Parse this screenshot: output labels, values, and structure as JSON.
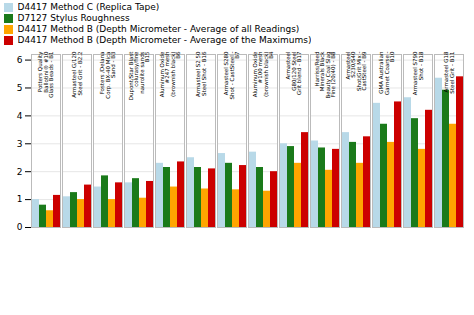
{
  "chart_data": {
    "type": "bar",
    "categories": [
      "Potters Quality\nBallotini® #10\nGlass Beads - B1",
      "Armasteel G/120\nSteel Grit - B2.2",
      "Fosters /Delana\nCorp. BX-40 Mica\nSand - B3",
      "Dupont/Star Blast\ncolurasy/fine\nnaurolite sands\nB15",
      "Aluminum Oxide\n#247 mesh\n(brownish black)\nB6",
      "Armasteel S2 50\nSteel Shot - B16",
      "Armasteel S280\nShot - CastSteel -\nB7",
      "Aluminum Oxide\n#100 mesh\n(brownish black)\nB4",
      "Armasteel\nG80/120 Steel\nGrit blend - B17",
      "Harriss/Reed\nMinerals Black\nBeauty Coal Slag\nFine (20/40) - B8",
      "Armasteel\nS230/S40\nShot/Grit Mix -\nCastSteel - B9",
      "GMA Australian\nGarnet Coarse -\nB10",
      "Armasteel S790\nShot - B18",
      "Armasteel G18\nSteel Grit - B11"
    ],
    "series": [
      {
        "name": "D4417 Method C (Replica Tape)",
        "color": "#b8d9e8",
        "values": [
          1.0,
          1.1,
          1.45,
          1.6,
          2.3,
          2.5,
          2.65,
          2.7,
          3.0,
          3.1,
          3.4,
          4.45,
          4.65,
          5.35
        ]
      },
      {
        "name": "D7127 Stylus Roughness",
        "color": "#1a7a1a",
        "values": [
          0.8,
          1.25,
          1.85,
          1.75,
          2.15,
          2.15,
          2.3,
          2.15,
          2.9,
          2.85,
          3.05,
          3.7,
          3.9,
          4.92
        ]
      },
      {
        "name": "D4417 Method B (Depth Micrometer - Average of all Readings)",
        "color": "#FFA500",
        "values": [
          0.6,
          1.0,
          1.0,
          1.05,
          1.45,
          1.38,
          1.35,
          1.3,
          2.3,
          2.05,
          2.3,
          3.05,
          2.8,
          3.7
        ]
      },
      {
        "name": "D4417 Method B (Depth Micrometer - Average of the Maximums)",
        "color": "#CC0000",
        "values": [
          1.15,
          1.52,
          1.6,
          1.65,
          2.35,
          2.1,
          2.22,
          2.0,
          3.4,
          2.8,
          3.25,
          4.5,
          4.2,
          5.4
        ]
      }
    ],
    "ylim": [
      0,
      6.2
    ],
    "yticks": [
      0,
      1,
      2,
      3,
      4,
      5,
      6
    ],
    "grid": true,
    "legend": "top"
  }
}
